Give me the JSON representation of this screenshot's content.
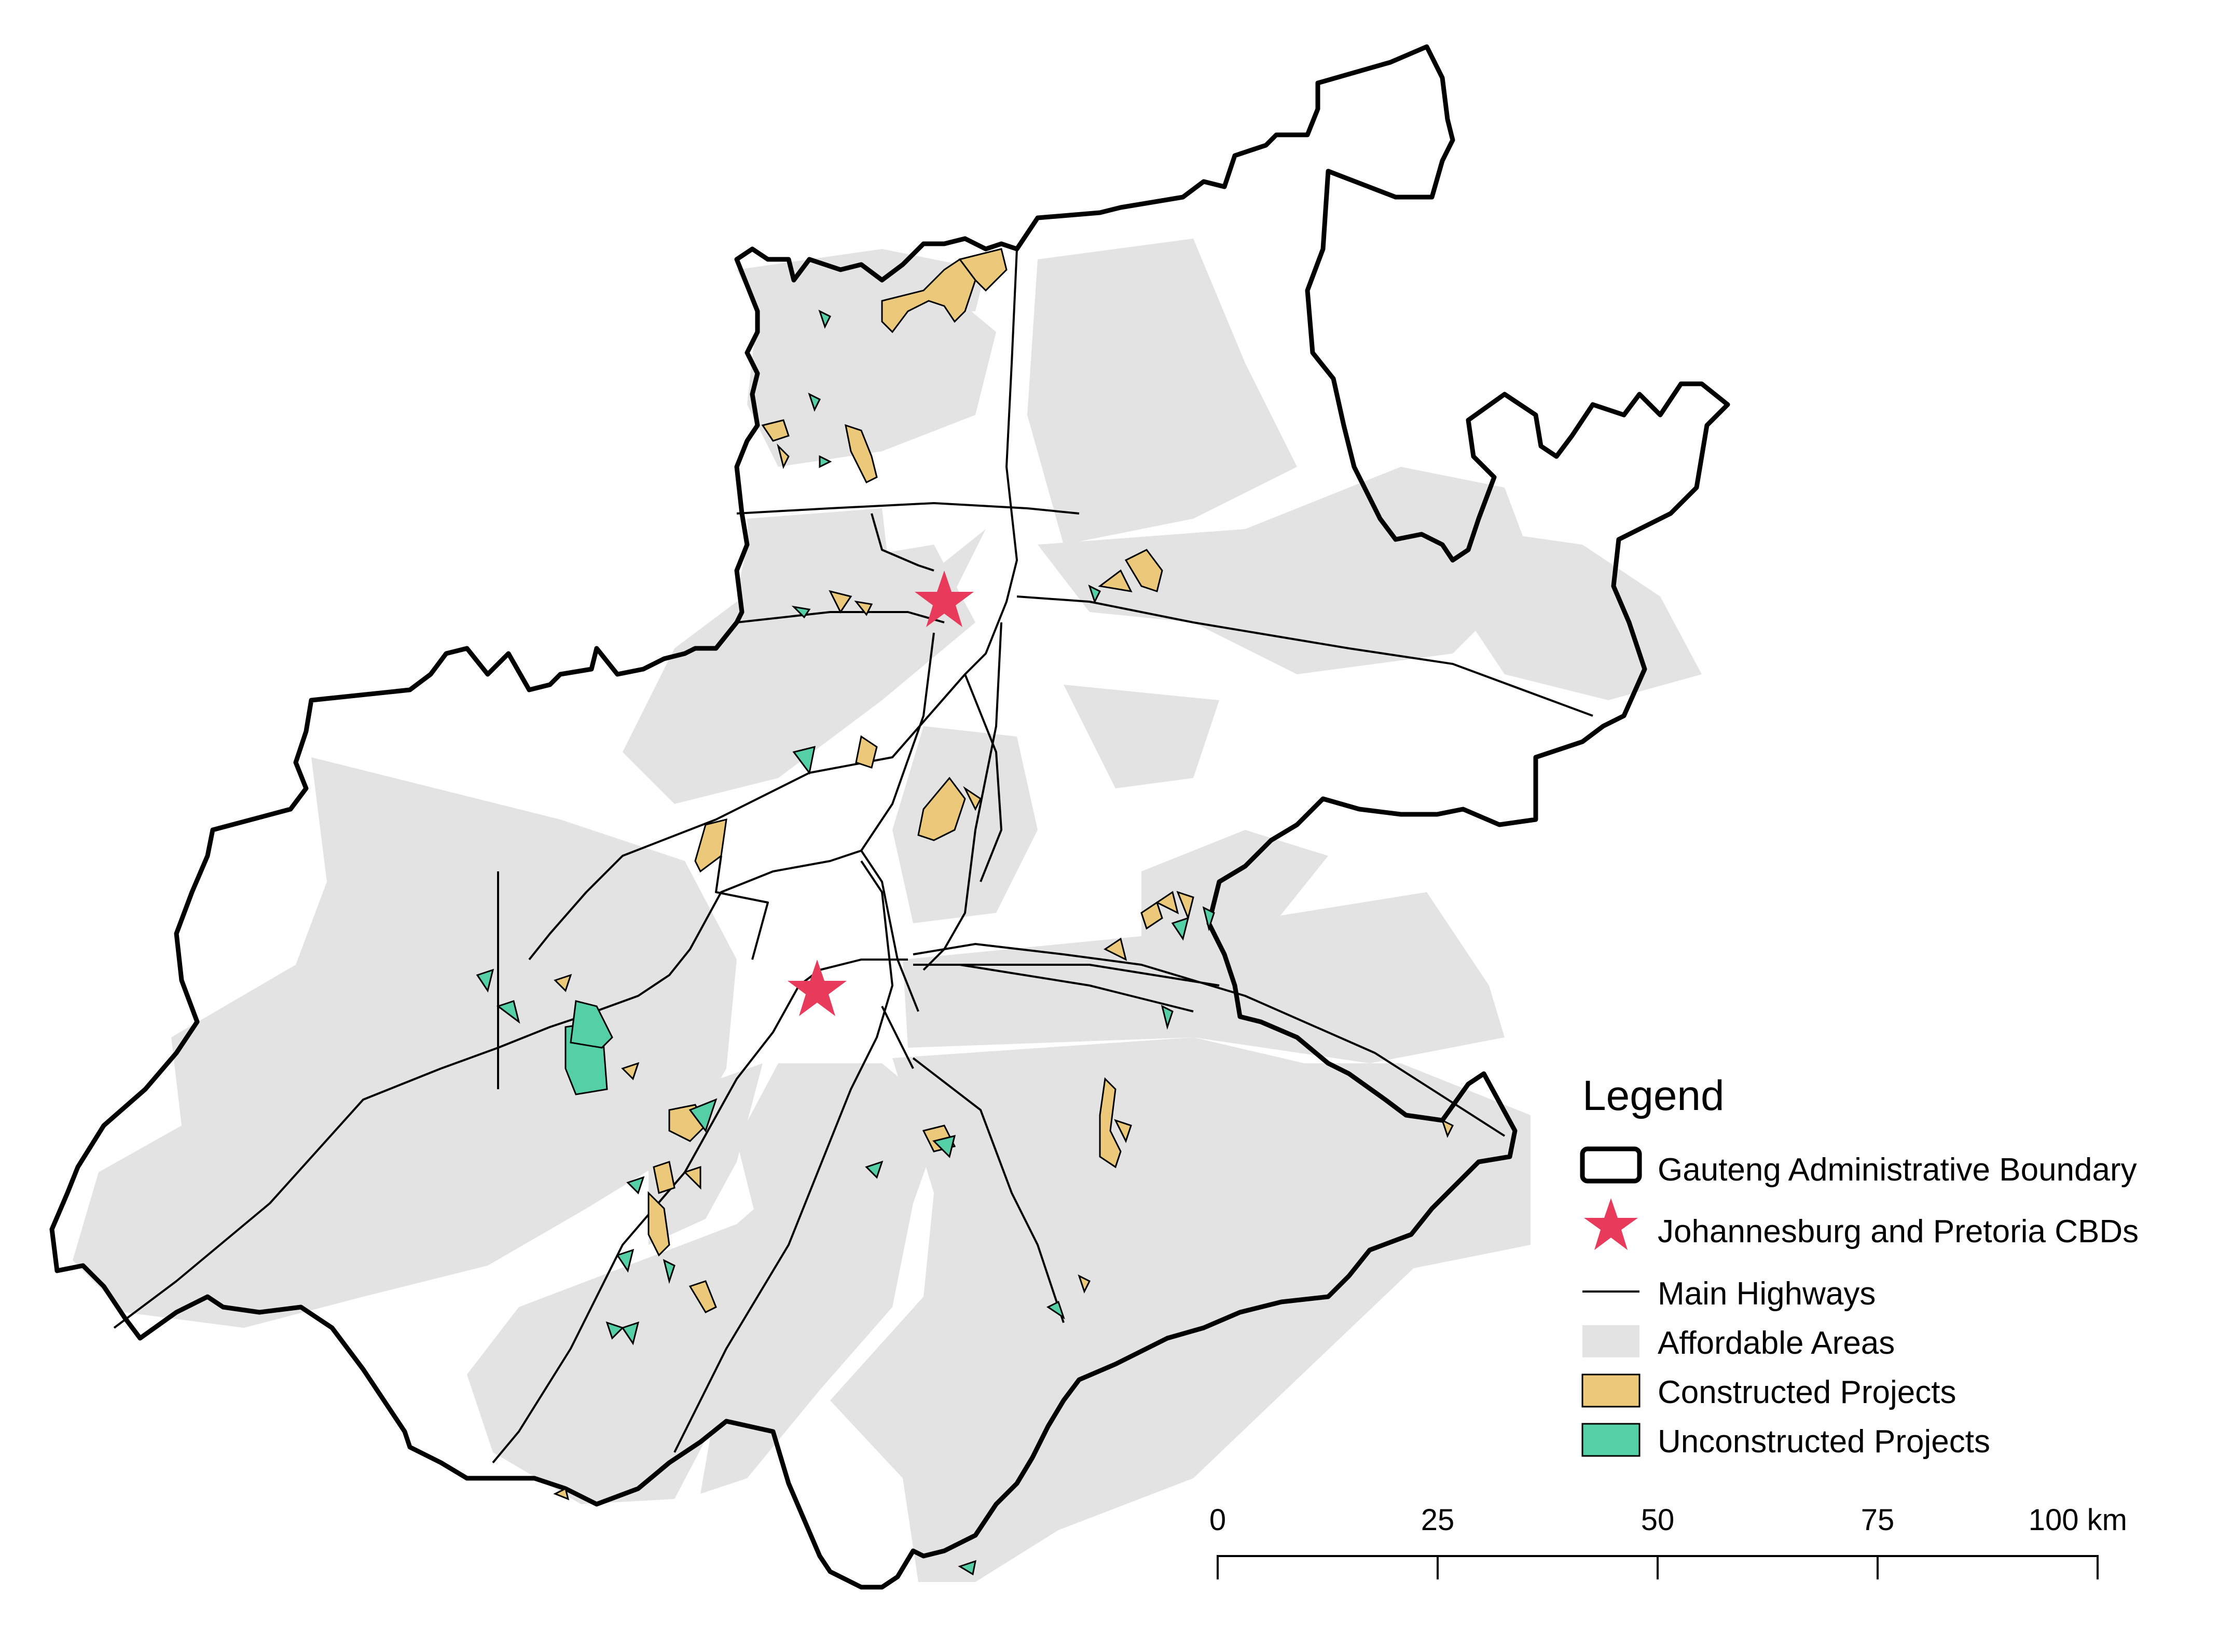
{
  "legend": {
    "title": "Legend",
    "items": [
      {
        "label": "Gauteng Administrative Boundary",
        "symbol": "boundary"
      },
      {
        "label": "Johannesburg and Pretoria CBDs",
        "symbol": "star"
      },
      {
        "label": "Main Highways",
        "symbol": "line"
      },
      {
        "label": "Affordable Areas",
        "symbol": "fill-gray"
      },
      {
        "label": "Constructed Projects",
        "symbol": "fill-tan"
      },
      {
        "label": "Unconstructed Projects",
        "symbol": "fill-teal"
      }
    ]
  },
  "scale_bar": {
    "ticks": [
      "0",
      "25",
      "50",
      "75",
      "100 km"
    ]
  },
  "markers": [
    {
      "name": "Pretoria CBD"
    },
    {
      "name": "Johannesburg CBD"
    }
  ],
  "colors": {
    "boundary": "#000000",
    "affordable": "#e3e3e3",
    "constructed": "#ecc97a",
    "unconstructed": "#55cfa6",
    "cbd_star": "#e83a5a",
    "highway": "#000000"
  }
}
